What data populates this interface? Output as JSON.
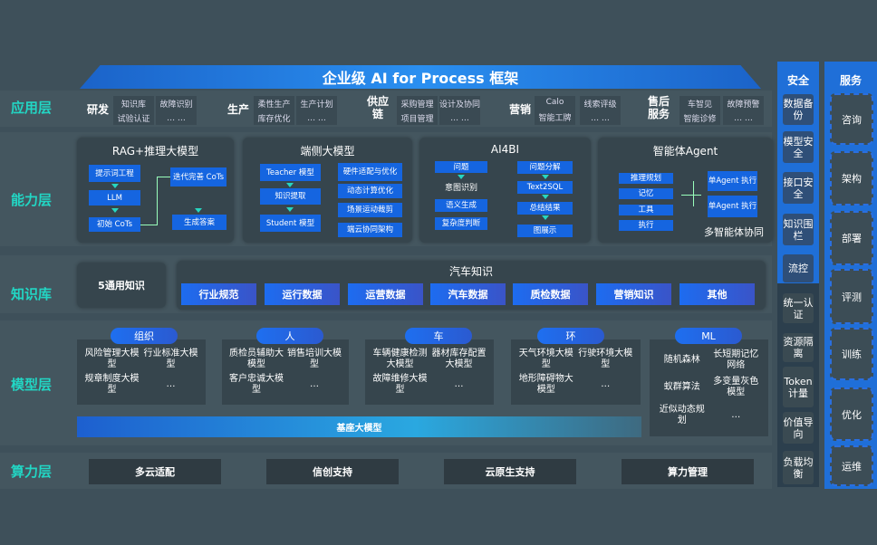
{
  "title": "企业级 AI for Process 框架",
  "layers": {
    "app": "应用层",
    "capability": "能力层",
    "knowledge": "知识库",
    "model": "模型层",
    "compute": "算力层"
  },
  "app_groups": [
    {
      "label": "研发",
      "items": [
        [
          "知识库",
          "试验认证"
        ],
        [
          "故障识别",
          "… …"
        ]
      ]
    },
    {
      "label": "生产",
      "items": [
        [
          "柔性生产",
          "库存优化"
        ],
        [
          "生产计划",
          "… …"
        ]
      ]
    },
    {
      "label": "供应链",
      "items": [
        [
          "采购管理",
          "项目管理"
        ],
        [
          "设计及协同",
          "… …"
        ]
      ]
    },
    {
      "label": "营销",
      "items": [
        [
          "Calo",
          "智能工牌"
        ],
        [
          "线索评级",
          "… …"
        ]
      ]
    },
    {
      "label": "售后服务",
      "items": [
        [
          "车智见",
          "智能诊修"
        ],
        [
          "故障预警",
          "… …"
        ]
      ]
    }
  ],
  "capability": {
    "rag": {
      "title": "RAG+推理大模型",
      "left": [
        "提示词工程",
        "LLM",
        "初始 CoTs"
      ],
      "right": [
        "迭代完善 CoTs",
        "生成答案"
      ]
    },
    "edge": {
      "title": "端侧大模型",
      "left": [
        "Teacher 模型",
        "知识提取",
        "Student 模型"
      ],
      "right": [
        "硬件适配与优化",
        "动态计算优化",
        "场景运动裁剪",
        "端云协同架构"
      ]
    },
    "ai4bi": {
      "title": "AI4BI",
      "left_top": "问题",
      "left_text": "意图识别",
      "left": [
        "语义生成",
        "复杂度判断"
      ],
      "right": [
        "问题分解",
        "Text2SQL",
        "总结结果",
        "图展示"
      ]
    },
    "agent": {
      "title": "智能体Agent",
      "left": [
        "推理规划",
        "记忆",
        "工具",
        "执行"
      ],
      "right": [
        "单Agent 执行",
        "单Agent 执行"
      ],
      "footer": "多智能体协同"
    }
  },
  "knowledge": {
    "general": "5通用知识",
    "auto_title": "汽车知识",
    "items": [
      "行业规范",
      "运行数据",
      "运营数据",
      "汽车数据",
      "质检数据",
      "营销知识",
      "其他"
    ]
  },
  "models": {
    "groups": [
      {
        "label": "组织",
        "items": [
          "风险管理大模型",
          "行业标准大模型",
          "规章制度大模型",
          "…"
        ]
      },
      {
        "label": "人",
        "items": [
          "质检员辅助大模型",
          "销售培训大模型",
          "客户忠诚大模型",
          "…"
        ]
      },
      {
        "label": "车",
        "items": [
          "车辆健康检测大模型",
          "器材库存配置大模型",
          "故障维修大模型",
          "…"
        ]
      },
      {
        "label": "环",
        "items": [
          "天气环境大模型",
          "行驶环境大模型",
          "地形障碍物大模型",
          "…"
        ]
      },
      {
        "label": "ML",
        "items": [
          "随机森林",
          "长短期记忆网络",
          "蚁群算法",
          "多变量灰色模型",
          "近似动态规划",
          "…"
        ]
      }
    ],
    "base": "基座大模型"
  },
  "compute": [
    "多云适配",
    "信创支持",
    "云原生支持",
    "算力管理"
  ],
  "security": {
    "title": "安全",
    "items": [
      "数据备份",
      "模型安全",
      "接口安全",
      "知识围栏",
      "流控",
      "统一认证",
      "资源隔离",
      "Token计量",
      "价值导向",
      "负载均衡"
    ]
  },
  "service": {
    "title": "服务",
    "items": [
      "咨询",
      "架构",
      "部署",
      "评测",
      "训练",
      "优化",
      "运维"
    ]
  }
}
